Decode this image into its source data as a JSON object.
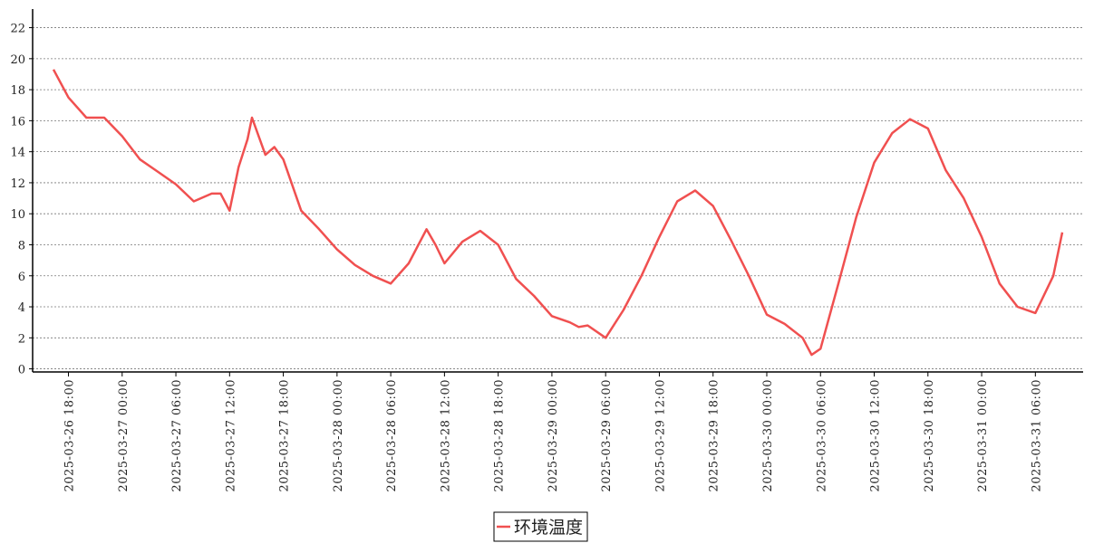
{
  "chart_data": {
    "type": "line",
    "x": [
      "2025-03-26 16:20",
      "2025-03-26 18:00",
      "2025-03-26 20:00",
      "2025-03-26 22:00",
      "2025-03-27 00:00",
      "2025-03-27 02:00",
      "2025-03-27 04:00",
      "2025-03-27 06:00",
      "2025-03-27 08:00",
      "2025-03-27 10:00",
      "2025-03-27 11:00",
      "2025-03-27 12:00",
      "2025-03-27 13:00",
      "2025-03-27 14:00",
      "2025-03-27 14:30",
      "2025-03-27 16:00",
      "2025-03-27 17:00",
      "2025-03-27 18:00",
      "2025-03-27 20:00",
      "2025-03-27 22:00",
      "2025-03-28 00:00",
      "2025-03-28 02:00",
      "2025-03-28 04:00",
      "2025-03-28 06:00",
      "2025-03-28 08:00",
      "2025-03-28 10:00",
      "2025-03-28 11:00",
      "2025-03-28 12:00",
      "2025-03-28 14:00",
      "2025-03-28 16:00",
      "2025-03-28 18:00",
      "2025-03-28 20:00",
      "2025-03-28 22:00",
      "2025-03-29 00:00",
      "2025-03-29 02:00",
      "2025-03-29 03:00",
      "2025-03-29 04:00",
      "2025-03-29 06:00",
      "2025-03-29 08:00",
      "2025-03-29 10:00",
      "2025-03-29 12:00",
      "2025-03-29 14:00",
      "2025-03-29 16:00",
      "2025-03-29 18:00",
      "2025-03-29 20:00",
      "2025-03-29 22:00",
      "2025-03-30 00:00",
      "2025-03-30 02:00",
      "2025-03-30 04:00",
      "2025-03-30 05:00",
      "2025-03-30 06:00",
      "2025-03-30 08:00",
      "2025-03-30 10:00",
      "2025-03-30 12:00",
      "2025-03-30 14:00",
      "2025-03-30 16:00",
      "2025-03-30 18:00",
      "2025-03-30 20:00",
      "2025-03-30 22:00",
      "2025-03-31 00:00",
      "2025-03-31 02:00",
      "2025-03-31 04:00",
      "2025-03-31 06:00",
      "2025-03-31 08:00",
      "2025-03-31 09:00"
    ],
    "series": [
      {
        "name": "环境温度",
        "color": "#f05050",
        "values": [
          19.3,
          17.5,
          16.2,
          16.2,
          15.0,
          13.5,
          12.7,
          11.9,
          10.8,
          11.3,
          11.3,
          10.2,
          13.0,
          14.8,
          16.2,
          13.8,
          14.3,
          13.5,
          10.2,
          9.0,
          7.7,
          6.7,
          6.0,
          5.5,
          6.8,
          9.0,
          8.0,
          6.8,
          8.2,
          8.9,
          8.0,
          5.8,
          4.7,
          3.4,
          3.0,
          2.7,
          2.8,
          2.0,
          3.8,
          6.0,
          8.5,
          10.8,
          11.5,
          10.5,
          8.3,
          6.0,
          3.5,
          2.9,
          2.0,
          0.9,
          1.3,
          5.5,
          9.8,
          13.3,
          15.2,
          16.1,
          15.5,
          12.8,
          11.0,
          8.5,
          5.5,
          4.0,
          3.6,
          6.0,
          8.8
        ]
      }
    ],
    "xlim": [
      "2025-03-26 14:00",
      "2025-03-31 11:20"
    ],
    "xticks": [
      "2025-03-26 18:00",
      "2025-03-27 00:00",
      "2025-03-27 06:00",
      "2025-03-27 12:00",
      "2025-03-27 18:00",
      "2025-03-28 00:00",
      "2025-03-28 06:00",
      "2025-03-28 12:00",
      "2025-03-28 18:00",
      "2025-03-29 00:00",
      "2025-03-29 06:00",
      "2025-03-29 12:00",
      "2025-03-29 18:00",
      "2025-03-30 00:00",
      "2025-03-30 06:00",
      "2025-03-30 12:00",
      "2025-03-30 18:00",
      "2025-03-31 00:00",
      "2025-03-31 06:00"
    ],
    "ylim": [
      -0.2,
      23.2
    ],
    "yticks": [
      0,
      2,
      4,
      6,
      8,
      10,
      12,
      14,
      16,
      18,
      20,
      22
    ],
    "grid": true,
    "legend": "bottom"
  }
}
